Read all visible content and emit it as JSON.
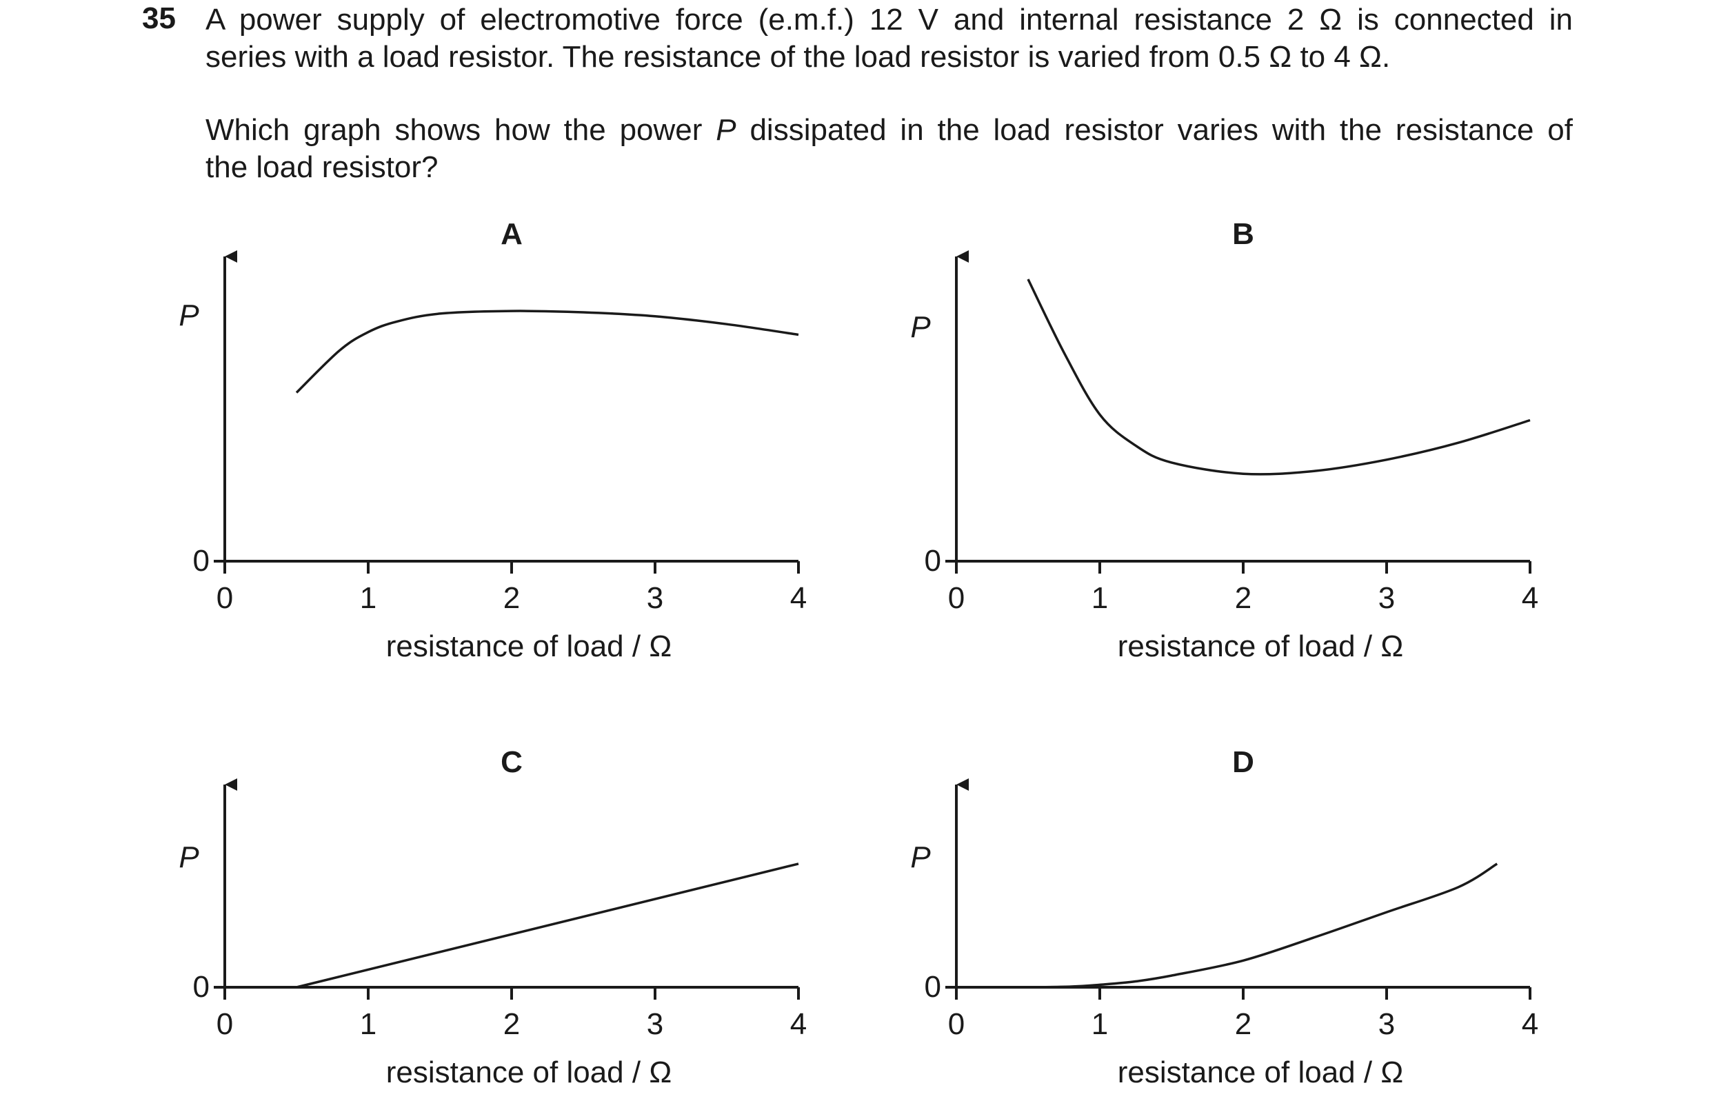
{
  "question": {
    "number": "35",
    "stem_line1": "A power supply of electromotive force (e.m.f.) 12 V and internal resistance 2 Ω is connected in",
    "stem_line2": "series with a load resistor. The resistance of the load resistor is varied from 0.5 Ω to 4 Ω.",
    "ask_line1_before": "Which graph shows how the power ",
    "ask_line1_var": "P",
    "ask_line1_after": " dissipated in the load resistor varies with the resistance of",
    "ask_line2": "the load resistor?"
  },
  "chart_data": [
    {
      "type": "line",
      "label": "A",
      "ylabel": "P",
      "xlabel": "resistance of load / Ω",
      "y_zero_label": "0",
      "x_ticks": [
        "0",
        "1",
        "2",
        "3",
        "4"
      ],
      "xlim": [
        0,
        4
      ],
      "ylim": [
        0,
        1
      ],
      "series": [
        {
          "x": [
            0.5,
            0.8,
            1.0,
            1.2,
            1.5,
            2.0,
            2.5,
            3.0,
            3.5,
            4.0
          ],
          "y": [
            0.64,
            0.8,
            0.87,
            0.91,
            0.94,
            0.95,
            0.945,
            0.93,
            0.9,
            0.86
          ]
        }
      ]
    },
    {
      "type": "line",
      "label": "B",
      "ylabel": "P",
      "xlabel": "resistance of load / Ω",
      "y_zero_label": "0",
      "x_ticks": [
        "0",
        "1",
        "2",
        "3",
        "4"
      ],
      "xlim": [
        0,
        4
      ],
      "ylim": [
        0,
        1
      ],
      "series": [
        {
          "x": [
            0.5,
            0.75,
            1.0,
            1.25,
            1.5,
            2.0,
            2.5,
            3.0,
            3.5,
            4.0
          ],
          "y": [
            1.0,
            0.74,
            0.52,
            0.41,
            0.35,
            0.31,
            0.32,
            0.36,
            0.42,
            0.5
          ]
        }
      ]
    },
    {
      "type": "line",
      "label": "C",
      "ylabel": "P",
      "xlabel": "resistance of load / Ω",
      "y_zero_label": "0",
      "x_ticks": [
        "0",
        "1",
        "2",
        "3",
        "4"
      ],
      "xlim": [
        0,
        4
      ],
      "ylim": [
        0,
        1
      ],
      "series": [
        {
          "x": [
            0.5,
            4.0
          ],
          "y": [
            0.0,
            0.74
          ]
        }
      ]
    },
    {
      "type": "line",
      "label": "D",
      "ylabel": "P",
      "xlabel": "resistance of load / Ω",
      "y_zero_label": "0",
      "x_ticks": [
        "0",
        "1",
        "2",
        "3",
        "4"
      ],
      "xlim": [
        0,
        4
      ],
      "ylim": [
        0,
        1
      ],
      "series": [
        {
          "x": [
            0.5,
            0.8,
            1.0,
            1.25,
            1.5,
            2.0,
            2.5,
            3.0,
            3.5,
            3.77
          ],
          "y": [
            0.0,
            0.004,
            0.015,
            0.035,
            0.07,
            0.16,
            0.3,
            0.45,
            0.6,
            0.74
          ]
        }
      ]
    }
  ]
}
